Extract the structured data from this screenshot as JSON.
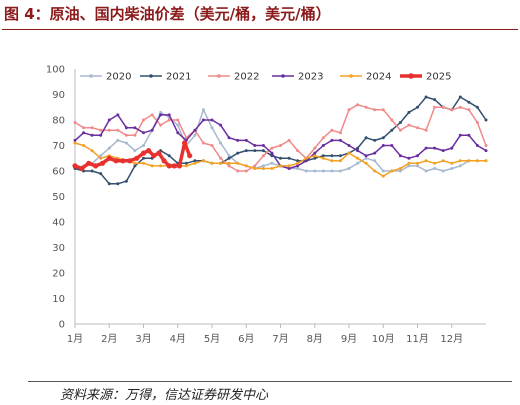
{
  "figure": {
    "title": "图 4：原油、国内柴油价差（美元/桶，美元/桶）",
    "source": "资料来源：万得，信达证券研发中心"
  },
  "chart_data": {
    "type": "line",
    "title": "",
    "xlabel": "",
    "ylabel": "",
    "ylim": [
      0,
      100
    ],
    "yticks": [
      0,
      10,
      20,
      30,
      40,
      50,
      60,
      70,
      80,
      90,
      100
    ],
    "xlim": [
      1,
      13
    ],
    "months": [
      "1月",
      "2月",
      "3月",
      "4月",
      "5月",
      "6月",
      "7月",
      "8月",
      "9月",
      "10月",
      "11月",
      "12月"
    ],
    "grid": false,
    "legend": "top",
    "series": [
      {
        "name": "2020",
        "color": "#a8b8d0",
        "marker": "dot",
        "x": [
          1.0,
          1.25,
          1.5,
          1.75,
          2.0,
          2.25,
          2.5,
          2.75,
          3.0,
          3.25,
          3.5,
          3.75,
          4.0,
          4.25,
          4.5,
          4.75,
          5.0,
          5.25,
          5.5,
          5.75,
          6.0,
          6.25,
          6.5,
          6.75,
          7.0,
          7.25,
          7.5,
          7.75,
          8.0,
          8.25,
          8.5,
          8.75,
          9.0,
          9.25,
          9.5,
          9.75,
          10.0,
          10.25,
          10.5,
          10.75,
          11.0,
          11.25,
          11.5,
          11.75,
          12.0,
          12.25,
          12.5,
          12.75,
          13.0
        ],
        "values": [
          61,
          62,
          63,
          66,
          69,
          72,
          71,
          68,
          70,
          76,
          83,
          81,
          78,
          70,
          74,
          84,
          77,
          71,
          66,
          63,
          62,
          61,
          62,
          63,
          62,
          61,
          61,
          60,
          60,
          60,
          60,
          60,
          61,
          63,
          65,
          64,
          60,
          60,
          60,
          62,
          62,
          60,
          61,
          60,
          61,
          62,
          64,
          64,
          64
        ]
      },
      {
        "name": "2021",
        "color": "#33506e",
        "marker": "dot",
        "x": [
          1.0,
          1.25,
          1.5,
          1.75,
          2.0,
          2.25,
          2.5,
          2.75,
          3.0,
          3.25,
          3.5,
          3.75,
          4.0,
          4.25,
          4.5,
          4.75,
          5.0,
          5.25,
          5.5,
          5.75,
          6.0,
          6.25,
          6.5,
          6.75,
          7.0,
          7.25,
          7.5,
          7.75,
          8.0,
          8.25,
          8.5,
          8.75,
          9.0,
          9.25,
          9.5,
          9.75,
          10.0,
          10.25,
          10.5,
          10.75,
          11.0,
          11.25,
          11.5,
          11.75,
          12.0,
          12.25,
          12.5,
          12.75,
          13.0
        ],
        "values": [
          61,
          60,
          60,
          59,
          55,
          55,
          56,
          62,
          65,
          65,
          68,
          66,
          63,
          63,
          64,
          64,
          63,
          63,
          65,
          67,
          68,
          68,
          68,
          66,
          65,
          65,
          64,
          64,
          65,
          66,
          66,
          66,
          67,
          69,
          73,
          72,
          73,
          76,
          79,
          83,
          85,
          89,
          88,
          85,
          84,
          89,
          87,
          85,
          80
        ]
      },
      {
        "name": "2022",
        "color": "#f08a8a",
        "marker": "dot",
        "x": [
          1.0,
          1.25,
          1.5,
          1.75,
          2.0,
          2.25,
          2.5,
          2.75,
          3.0,
          3.25,
          3.5,
          3.75,
          4.0,
          4.25,
          4.5,
          4.75,
          5.0,
          5.25,
          5.5,
          5.75,
          6.0,
          6.25,
          6.5,
          6.75,
          7.0,
          7.25,
          7.5,
          7.75,
          8.0,
          8.25,
          8.5,
          8.75,
          9.0,
          9.25,
          9.5,
          9.75,
          10.0,
          10.25,
          10.5,
          10.75,
          11.0,
          11.25,
          11.5,
          11.75,
          12.0,
          12.25,
          12.5,
          12.75,
          13.0
        ],
        "values": [
          79,
          77,
          77,
          76,
          76,
          76,
          74,
          74,
          80,
          82,
          78,
          80,
          80,
          73,
          76,
          71,
          70,
          65,
          62,
          60,
          60,
          62,
          66,
          69,
          70,
          72,
          68,
          65,
          69,
          73,
          76,
          75,
          84,
          86,
          85,
          84,
          84,
          80,
          76,
          78,
          77,
          76,
          85,
          85,
          84,
          85,
          84,
          79,
          70
        ]
      },
      {
        "name": "2023",
        "color": "#6a2ea0",
        "marker": "dot",
        "x": [
          1.0,
          1.25,
          1.5,
          1.75,
          2.0,
          2.25,
          2.5,
          2.75,
          3.0,
          3.25,
          3.5,
          3.75,
          4.0,
          4.25,
          4.5,
          4.75,
          5.0,
          5.25,
          5.5,
          5.75,
          6.0,
          6.25,
          6.5,
          6.75,
          7.0,
          7.25,
          7.5,
          7.75,
          8.0,
          8.25,
          8.5,
          8.75,
          9.0,
          9.25,
          9.5,
          9.75,
          10.0,
          10.25,
          10.5,
          10.75,
          11.0,
          11.25,
          11.5,
          11.75,
          12.0,
          12.25,
          12.5,
          12.75,
          13.0
        ],
        "values": [
          72,
          75,
          74,
          74,
          80,
          82,
          77,
          77,
          75,
          76,
          82,
          82,
          75,
          72,
          76,
          80,
          80,
          78,
          73,
          72,
          72,
          70,
          70,
          67,
          62,
          61,
          62,
          64,
          67,
          70,
          72,
          72,
          70,
          68,
          66,
          67,
          70,
          70,
          66,
          65,
          66,
          69,
          69,
          68,
          69,
          74,
          74,
          70,
          68
        ]
      },
      {
        "name": "2024",
        "color": "#f4a023",
        "marker": "dot",
        "x": [
          1.0,
          1.25,
          1.5,
          1.75,
          2.0,
          2.25,
          2.5,
          2.75,
          3.0,
          3.25,
          3.5,
          3.75,
          4.0,
          4.25,
          4.5,
          4.75,
          5.0,
          5.25,
          5.5,
          5.75,
          6.0,
          6.25,
          6.5,
          6.75,
          7.0,
          7.25,
          7.5,
          7.75,
          8.0,
          8.25,
          8.5,
          8.75,
          9.0,
          9.25,
          9.5,
          9.75,
          10.0,
          10.25,
          10.5,
          10.75,
          11.0,
          11.25,
          11.5,
          11.75,
          12.0,
          12.25,
          12.5,
          12.75,
          13.0
        ],
        "values": [
          71,
          70,
          68,
          65,
          66,
          65,
          64,
          63,
          63,
          62,
          62,
          62,
          62,
          62,
          63,
          64,
          63,
          63,
          63,
          63,
          62,
          61,
          61,
          61,
          62,
          62,
          63,
          65,
          66,
          65,
          64,
          64,
          67,
          65,
          63,
          60,
          58,
          60,
          61,
          63,
          63,
          64,
          63,
          64,
          63,
          64,
          64,
          64,
          64
        ]
      },
      {
        "name": "2025",
        "color": "#e8312e",
        "marker": "dot",
        "x": [
          1.0,
          1.2,
          1.4,
          1.6,
          1.8,
          2.0,
          2.2,
          2.4,
          2.6,
          2.8,
          3.0,
          3.15,
          3.3,
          3.45,
          3.6,
          3.75,
          3.9,
          4.05,
          4.2,
          4.35
        ],
        "values": [
          62,
          61,
          63,
          62,
          63,
          65,
          64,
          64,
          64,
          65,
          67,
          68,
          66,
          67,
          64,
          62,
          62,
          62,
          71,
          66
        ]
      }
    ]
  }
}
